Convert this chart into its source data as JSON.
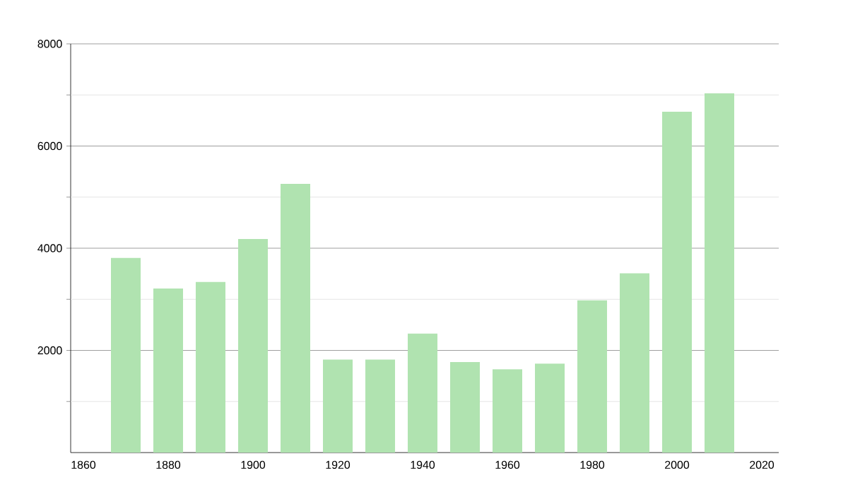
{
  "chart_data": {
    "type": "bar",
    "x": [
      1870,
      1880,
      1890,
      1900,
      1910,
      1920,
      1930,
      1940,
      1950,
      1960,
      1970,
      1980,
      1990,
      2000,
      2010
    ],
    "values": [
      3810,
      3210,
      3340,
      4180,
      5260,
      1820,
      1820,
      2330,
      1770,
      1630,
      1740,
      2980,
      3510,
      6670,
      7030
    ],
    "color": "#b0e3b0",
    "xlim": [
      1857,
      2024
    ],
    "xticks": [
      1860,
      1880,
      1900,
      1920,
      1940,
      1960,
      1980,
      2000,
      2020
    ],
    "ylim": [
      0,
      8000
    ],
    "yticks": [
      {
        "value": 1000,
        "label": null
      },
      2000,
      {
        "value": 3000,
        "label": null
      },
      4000,
      {
        "value": 5000,
        "label": null
      },
      6000,
      {
        "value": 7000,
        "label": null
      },
      8000
    ],
    "grid": "y"
  }
}
